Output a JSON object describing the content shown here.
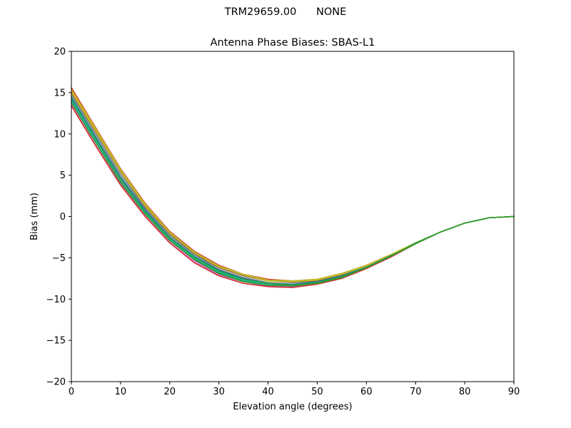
{
  "suptitle": "TRM29659.00      NONE",
  "chart_data": {
    "type": "line",
    "title": "Antenna Phase Biases: SBAS-L1",
    "xlabel": "Elevation angle (degrees)",
    "ylabel": "Bias (mm)",
    "xlim": [
      0,
      90
    ],
    "ylim": [
      -20,
      20
    ],
    "xticks": [
      "0",
      "10",
      "20",
      "30",
      "40",
      "50",
      "60",
      "70",
      "80",
      "90"
    ],
    "yticks": [
      "20",
      "15",
      "10",
      "5",
      "0",
      "−5",
      "−10",
      "−15",
      "−20"
    ],
    "grid": false,
    "x": [
      0,
      5,
      10,
      15,
      20,
      25,
      30,
      35,
      40,
      45,
      50,
      55,
      60,
      65,
      70,
      75,
      80,
      85,
      90
    ],
    "series": [
      {
        "color": "#1f77b4",
        "values": [
          14.2,
          9.3,
          4.6,
          0.6,
          -2.6,
          -4.9,
          -6.6,
          -7.6,
          -8.2,
          -8.3,
          -8.0,
          -7.3,
          -6.2,
          -4.8,
          -3.3,
          -1.9,
          -0.8,
          -0.15,
          0.0
        ]
      },
      {
        "color": "#ff7f0e",
        "values": [
          15.3,
          10.5,
          5.6,
          1.4,
          -1.9,
          -4.3,
          -6.0,
          -7.1,
          -7.7,
          -7.9,
          -7.7,
          -7.0,
          -6.0,
          -4.7,
          -3.2,
          -1.9,
          -0.8,
          -0.15,
          0.0
        ]
      },
      {
        "color": "#2ca02c",
        "values": [
          14.0,
          9.1,
          4.3,
          0.4,
          -2.8,
          -5.1,
          -6.8,
          -7.8,
          -8.3,
          -8.4,
          -8.1,
          -7.4,
          -6.3,
          -4.8,
          -3.3,
          -1.9,
          -0.8,
          -0.15,
          0.0
        ]
      },
      {
        "color": "#d62728",
        "values": [
          15.6,
          10.7,
          5.8,
          1.6,
          -1.8,
          -4.2,
          -5.9,
          -7.0,
          -7.6,
          -7.8,
          -7.6,
          -6.9,
          -5.9,
          -4.6,
          -3.2,
          -1.9,
          -0.8,
          -0.15,
          0.0
        ]
      },
      {
        "color": "#9467bd",
        "values": [
          13.9,
          8.9,
          4.2,
          0.3,
          -2.9,
          -5.3,
          -7.0,
          -7.9,
          -8.4,
          -8.5,
          -8.1,
          -7.4,
          -6.3,
          -4.9,
          -3.3,
          -1.9,
          -0.8,
          -0.15,
          0.0
        ]
      },
      {
        "color": "#8c564b",
        "values": [
          15.0,
          10.2,
          5.4,
          1.2,
          -2.1,
          -4.5,
          -6.2,
          -7.2,
          -7.8,
          -8.0,
          -7.8,
          -7.1,
          -6.0,
          -4.7,
          -3.2,
          -1.9,
          -0.8,
          -0.15,
          0.0
        ]
      },
      {
        "color": "#e377c2",
        "values": [
          13.6,
          8.6,
          3.9,
          0.1,
          -3.1,
          -5.5,
          -7.1,
          -8.1,
          -8.5,
          -8.6,
          -8.2,
          -7.5,
          -6.3,
          -4.9,
          -3.3,
          -1.9,
          -0.8,
          -0.15,
          0.0
        ]
      },
      {
        "color": "#7f7f7f",
        "values": [
          14.8,
          9.9,
          5.1,
          1.0,
          -2.3,
          -4.6,
          -6.4,
          -7.4,
          -8.0,
          -8.2,
          -7.9,
          -7.2,
          -6.1,
          -4.7,
          -3.2,
          -1.9,
          -0.8,
          -0.15,
          0.0
        ]
      },
      {
        "color": "#bcbd22",
        "values": [
          15.4,
          10.6,
          5.7,
          1.5,
          -1.9,
          -4.3,
          -6.0,
          -7.0,
          -7.7,
          -7.8,
          -7.6,
          -6.9,
          -5.9,
          -4.6,
          -3.2,
          -1.9,
          -0.8,
          -0.15,
          0.0
        ]
      },
      {
        "color": "#17becf",
        "values": [
          14.1,
          9.2,
          4.5,
          0.5,
          -2.7,
          -5.0,
          -6.7,
          -7.7,
          -8.2,
          -8.3,
          -8.0,
          -7.3,
          -6.2,
          -4.8,
          -3.3,
          -1.9,
          -0.8,
          -0.15,
          0.0
        ]
      },
      {
        "color": "#1f77b4",
        "values": [
          14.5,
          9.6,
          4.8,
          0.8,
          -2.5,
          -4.8,
          -6.5,
          -7.5,
          -8.1,
          -8.2,
          -7.9,
          -7.2,
          -6.1,
          -4.7,
          -3.2,
          -1.9,
          -0.8,
          -0.15,
          0.0
        ]
      },
      {
        "color": "#d62728",
        "values": [
          13.4,
          8.5,
          3.8,
          0.0,
          -3.2,
          -5.6,
          -7.2,
          -8.1,
          -8.5,
          -8.6,
          -8.2,
          -7.5,
          -6.3,
          -4.9,
          -3.3,
          -1.9,
          -0.8,
          -0.15,
          0.0
        ]
      },
      {
        "color": "#bcbd22",
        "values": [
          15.1,
          10.3,
          5.5,
          1.3,
          -2.0,
          -4.4,
          -6.1,
          -7.1,
          -7.8,
          -7.9,
          -7.7,
          -7.0,
          -6.0,
          -4.6,
          -3.2,
          -1.9,
          -0.8,
          -0.15,
          0.0
        ]
      },
      {
        "color": "#2ca02c",
        "values": [
          14.3,
          9.4,
          4.6,
          0.6,
          -2.6,
          -4.9,
          -6.6,
          -7.6,
          -8.1,
          -8.3,
          -8.0,
          -7.3,
          -6.2,
          -4.8,
          -3.2,
          -1.9,
          -0.8,
          -0.15,
          0.0
        ]
      },
      {
        "color": "#2ca02c",
        "values": [
          13.8,
          8.9,
          4.1,
          0.3,
          -2.9,
          -5.2,
          -6.9,
          -7.9,
          -8.3,
          -8.4,
          -8.1,
          -7.4,
          -6.2,
          -4.8,
          -3.3,
          -1.9,
          -0.8,
          -0.15,
          0.0
        ]
      }
    ]
  }
}
